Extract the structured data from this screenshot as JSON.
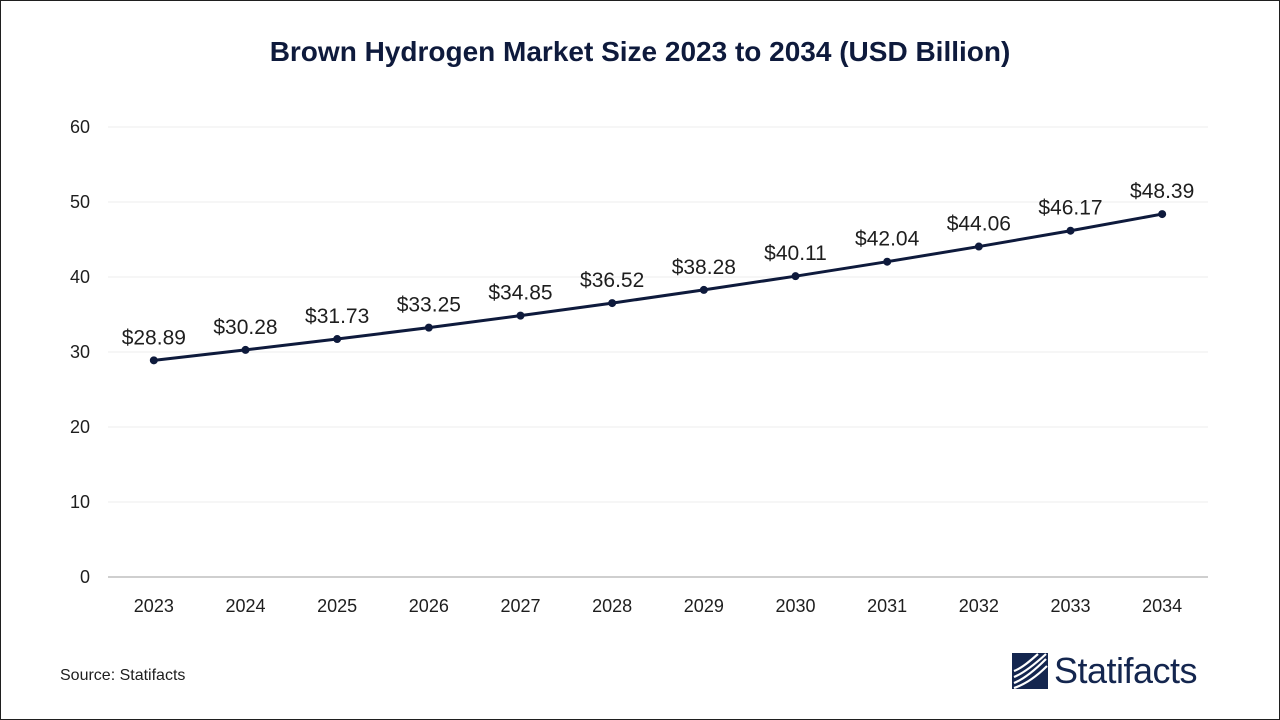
{
  "chart_data": {
    "type": "line",
    "title": "Brown Hydrogen Market Size 2023 to 2034 (USD Billion)",
    "xlabel": "",
    "ylabel": "",
    "categories": [
      "2023",
      "2024",
      "2025",
      "2026",
      "2027",
      "2028",
      "2029",
      "2030",
      "2031",
      "2032",
      "2033",
      "2034"
    ],
    "values": [
      28.89,
      30.28,
      31.73,
      33.25,
      34.85,
      36.52,
      38.28,
      40.11,
      42.04,
      44.06,
      46.17,
      48.39
    ],
    "data_labels": [
      "$28.89",
      "$30.28",
      "$31.73",
      "$33.25",
      "$34.85",
      "$36.52",
      "$38.28",
      "$40.11",
      "$42.04",
      "$44.06",
      "$46.17",
      "$48.39"
    ],
    "ylim": [
      0,
      60
    ],
    "yticks": [
      "0",
      "10",
      "20",
      "30",
      "40",
      "50",
      "60"
    ],
    "grid": true,
    "legend": "none",
    "colors": {
      "line": "#0e1a3c",
      "marker": "#0e1a3c",
      "grid": "#ececec",
      "axis": "#bfbfbf",
      "text": "#1e1e1e"
    }
  },
  "footer": {
    "source": "Source: Statifacts",
    "brand_name": "Statifacts",
    "brand_icon": "statifacts-logo-icon"
  }
}
